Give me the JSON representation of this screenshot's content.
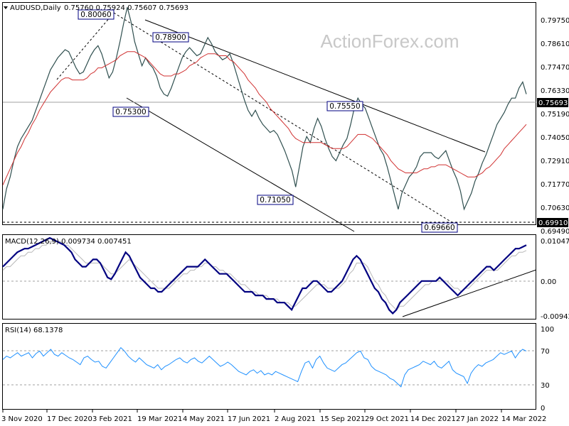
{
  "header": {
    "symbol": "AUDUSD,Daily",
    "ohlc": "0.75760 0.75924 0.75607 0.75693"
  },
  "watermark": "ActionForex.com",
  "colors": {
    "price": "#2f4f4f",
    "ma": "#d03030",
    "macd": "#000080",
    "signal": "#b8b8b8",
    "rsi": "#1e90ff",
    "label_border": "#000080"
  },
  "chart_data": [
    {
      "type": "line",
      "panel": "price",
      "ylim": [
        0.6925,
        0.8022
      ],
      "y_ticks": [
        "0.79750",
        "0.78610",
        "0.77470",
        "0.76330",
        "0.75190",
        "0.74050",
        "0.72910",
        "0.71770",
        "0.70630",
        "0.69490"
      ],
      "current_price_label": "0.75693",
      "support_label": "0.69910",
      "x_ticks": [
        "3 Nov 2020",
        "17 Dec 2020",
        "3 Feb 2021",
        "19 Mar 2021",
        "4 May 2021",
        "17 Jun 2021",
        "2 Aug 2021",
        "15 Sep 2021",
        "29 Oct 2021",
        "14 Dec 2021",
        "27 Jan 2022",
        "14 Mar 2022"
      ],
      "annotations": [
        "0.80060",
        "0.78900",
        "0.75300",
        "0.75550",
        "0.71050",
        "0.69660"
      ],
      "series": [
        {
          "values": [
            0.7,
            0.71,
            0.716,
            0.724,
            0.731,
            0.735,
            0.738,
            0.741,
            0.744,
            0.749,
            0.754,
            0.759,
            0.764,
            0.769,
            0.772,
            0.775,
            0.777,
            0.779,
            0.778,
            0.774,
            0.77,
            0.767,
            0.768,
            0.772,
            0.776,
            0.779,
            0.781,
            0.777,
            0.771,
            0.765,
            0.768,
            0.775,
            0.783,
            0.792,
            0.8,
            0.793,
            0.783,
            0.777,
            0.771,
            0.775,
            0.772,
            0.77,
            0.766,
            0.76,
            0.757,
            0.756,
            0.76,
            0.765,
            0.77,
            0.775,
            0.778,
            0.78,
            0.778,
            0.776,
            0.777,
            0.781,
            0.785,
            0.782,
            0.778,
            0.776,
            0.774,
            0.775,
            0.777,
            0.772,
            0.766,
            0.76,
            0.754,
            0.749,
            0.746,
            0.749,
            0.745,
            0.742,
            0.74,
            0.738,
            0.739,
            0.737,
            0.733,
            0.729,
            0.724,
            0.719,
            0.711,
            0.721,
            0.731,
            0.736,
            0.733,
            0.74,
            0.745,
            0.741,
            0.735,
            0.73,
            0.726,
            0.724,
            0.728,
            0.732,
            0.735,
            0.742,
            0.75,
            0.755,
            0.752,
            0.75,
            0.745,
            0.74,
            0.735,
            0.73,
            0.727,
            0.721,
            0.714,
            0.707,
            0.7,
            0.708,
            0.712,
            0.716,
            0.718,
            0.721,
            0.726,
            0.728,
            0.728,
            0.728,
            0.726,
            0.725,
            0.727,
            0.729,
            0.724,
            0.719,
            0.715,
            0.709,
            0.7,
            0.704,
            0.708,
            0.714,
            0.718,
            0.723,
            0.727,
            0.732,
            0.737,
            0.742,
            0.745,
            0.748,
            0.752,
            0.755,
            0.755,
            0.76,
            0.763,
            0.757
          ]
        },
        {
          "values": [
            0.712,
            0.716,
            0.72,
            0.724,
            0.728,
            0.731,
            0.735,
            0.738,
            0.742,
            0.745,
            0.749,
            0.752,
            0.755,
            0.758,
            0.76,
            0.762,
            0.764,
            0.765,
            0.765,
            0.764,
            0.764,
            0.764,
            0.764,
            0.765,
            0.767,
            0.768,
            0.77,
            0.77,
            0.771,
            0.772,
            0.773,
            0.774,
            0.776,
            0.777,
            0.778,
            0.778,
            0.778,
            0.777,
            0.776,
            0.775,
            0.773,
            0.771,
            0.769,
            0.767,
            0.766,
            0.766,
            0.766,
            0.767,
            0.767,
            0.768,
            0.769,
            0.771,
            0.772,
            0.773,
            0.775,
            0.776,
            0.777,
            0.777,
            0.777,
            0.776,
            0.776,
            0.776,
            0.774,
            0.773,
            0.771,
            0.769,
            0.767,
            0.764,
            0.762,
            0.76,
            0.757,
            0.755,
            0.753,
            0.75,
            0.748,
            0.746,
            0.744,
            0.742,
            0.74,
            0.737,
            0.735,
            0.734,
            0.733,
            0.733,
            0.733,
            0.733,
            0.733,
            0.733,
            0.732,
            0.731,
            0.73,
            0.73,
            0.73,
            0.73,
            0.731,
            0.733,
            0.735,
            0.737,
            0.737,
            0.737,
            0.736,
            0.735,
            0.733,
            0.731,
            0.729,
            0.727,
            0.724,
            0.722,
            0.72,
            0.719,
            0.718,
            0.718,
            0.718,
            0.718,
            0.719,
            0.72,
            0.72,
            0.721,
            0.721,
            0.722,
            0.722,
            0.722,
            0.721,
            0.72,
            0.719,
            0.718,
            0.717,
            0.716,
            0.716,
            0.716,
            0.717,
            0.718,
            0.72,
            0.721,
            0.723,
            0.725,
            0.727,
            0.73,
            0.732,
            0.734,
            0.736,
            0.738,
            0.74,
            0.742
          ]
        }
      ]
    },
    {
      "type": "line",
      "panel": "macd",
      "label": "MACD(12,26,9) 0.009734 0.007451",
      "ylim": [
        -0.0105,
        0.0128
      ],
      "y_ticks": [
        "0.010472",
        "0.00",
        "-0.009426"
      ],
      "series": [
        {
          "values": [
            0.004,
            0.005,
            0.006,
            0.007,
            0.008,
            0.0085,
            0.009,
            0.009,
            0.0095,
            0.01,
            0.0105,
            0.011,
            0.0115,
            0.012,
            0.0115,
            0.011,
            0.0105,
            0.01,
            0.009,
            0.008,
            0.006,
            0.005,
            0.004,
            0.004,
            0.005,
            0.006,
            0.006,
            0.005,
            0.003,
            0.001,
            0.0005,
            0.002,
            0.004,
            0.006,
            0.008,
            0.007,
            0.005,
            0.003,
            0.001,
            0.0,
            -0.001,
            -0.002,
            -0.002,
            -0.003,
            -0.003,
            -0.002,
            -0.001,
            0.0,
            0.001,
            0.002,
            0.003,
            0.004,
            0.004,
            0.004,
            0.004,
            0.005,
            0.006,
            0.005,
            0.004,
            0.003,
            0.002,
            0.002,
            0.002,
            0.001,
            0.0,
            -0.001,
            -0.002,
            -0.003,
            -0.003,
            -0.003,
            -0.004,
            -0.004,
            -0.004,
            -0.005,
            -0.005,
            -0.005,
            -0.006,
            -0.006,
            -0.006,
            -0.007,
            -0.008,
            -0.006,
            -0.004,
            -0.002,
            -0.002,
            -0.001,
            0.0,
            0.0,
            -0.001,
            -0.002,
            -0.003,
            -0.003,
            -0.002,
            -0.001,
            0.0,
            0.002,
            0.004,
            0.006,
            0.007,
            0.006,
            0.004,
            0.002,
            0.0,
            -0.002,
            -0.003,
            -0.005,
            -0.006,
            -0.008,
            -0.009,
            -0.008,
            -0.006,
            -0.005,
            -0.004,
            -0.003,
            -0.002,
            -0.001,
            0.0,
            0.0,
            0.0,
            0.0,
            0.0,
            0.001,
            0.0,
            -0.001,
            -0.002,
            -0.003,
            -0.004,
            -0.003,
            -0.002,
            -0.001,
            0.0,
            0.001,
            0.002,
            0.003,
            0.004,
            0.004,
            0.003,
            0.004,
            0.005,
            0.006,
            0.007,
            0.008,
            0.009,
            0.009,
            0.0095,
            0.01
          ]
        },
        {
          "values": [
            0.003,
            0.004,
            0.004,
            0.005,
            0.006,
            0.007,
            0.007,
            0.008,
            0.008,
            0.009,
            0.009,
            0.01,
            0.01,
            0.011,
            0.011,
            0.011,
            0.011,
            0.01,
            0.01,
            0.009,
            0.008,
            0.007,
            0.006,
            0.005,
            0.005,
            0.005,
            0.005,
            0.005,
            0.004,
            0.003,
            0.002,
            0.002,
            0.003,
            0.004,
            0.005,
            0.006,
            0.005,
            0.004,
            0.003,
            0.002,
            0.001,
            0.0,
            -0.001,
            -0.002,
            -0.002,
            -0.002,
            -0.002,
            -0.001,
            0.0,
            0.001,
            0.002,
            0.002,
            0.003,
            0.003,
            0.004,
            0.004,
            0.005,
            0.005,
            0.004,
            0.004,
            0.003,
            0.003,
            0.002,
            0.002,
            0.001,
            0.0,
            -0.001,
            -0.001,
            -0.002,
            -0.003,
            -0.003,
            -0.004,
            -0.004,
            -0.004,
            -0.005,
            -0.005,
            -0.005,
            -0.006,
            -0.006,
            -0.006,
            -0.007,
            -0.007,
            -0.006,
            -0.005,
            -0.004,
            -0.003,
            -0.002,
            -0.001,
            -0.001,
            -0.001,
            -0.002,
            -0.002,
            -0.002,
            -0.002,
            -0.001,
            0.0,
            0.002,
            0.003,
            0.005,
            0.005,
            0.005,
            0.004,
            0.002,
            0.0,
            -0.001,
            -0.003,
            -0.004,
            -0.006,
            -0.007,
            -0.008,
            -0.007,
            -0.007,
            -0.006,
            -0.005,
            -0.004,
            -0.003,
            -0.002,
            -0.001,
            -0.001,
            0.0,
            0.0,
            0.0,
            0.0,
            0.0,
            -0.001,
            -0.002,
            -0.002,
            -0.003,
            -0.002,
            -0.002,
            -0.001,
            0.0,
            0.001,
            0.002,
            0.003,
            0.003,
            0.003,
            0.003,
            0.004,
            0.005,
            0.006,
            0.007,
            0.007,
            0.008,
            0.008,
            0.0085
          ]
        }
      ]
    },
    {
      "type": "line",
      "panel": "rsi",
      "label": "RSI(14) 68.1378",
      "ylim": [
        0,
        100
      ],
      "y_ticks": [
        "100",
        "70",
        "30",
        "0"
      ],
      "series": [
        {
          "values": [
            58,
            62,
            60,
            63,
            66,
            62,
            64,
            66,
            60,
            65,
            68,
            62,
            66,
            70,
            64,
            62,
            66,
            63,
            60,
            58,
            55,
            52,
            60,
            62,
            58,
            55,
            56,
            50,
            48,
            54,
            60,
            66,
            72,
            68,
            62,
            58,
            55,
            60,
            56,
            52,
            50,
            48,
            52,
            46,
            50,
            52,
            55,
            58,
            60,
            56,
            54,
            58,
            60,
            56,
            54,
            58,
            62,
            58,
            54,
            50,
            52,
            55,
            52,
            48,
            44,
            42,
            40,
            44,
            46,
            42,
            45,
            40,
            42,
            40,
            44,
            42,
            40,
            38,
            36,
            34,
            32,
            44,
            54,
            56,
            48,
            58,
            62,
            54,
            48,
            46,
            44,
            48,
            52,
            54,
            58,
            62,
            66,
            68,
            60,
            58,
            50,
            46,
            44,
            42,
            40,
            36,
            34,
            30,
            26,
            40,
            46,
            48,
            50,
            52,
            56,
            54,
            52,
            56,
            50,
            48,
            52,
            56,
            46,
            42,
            40,
            38,
            30,
            42,
            48,
            52,
            50,
            54,
            56,
            58,
            62,
            66,
            64,
            66,
            68,
            60,
            66,
            70,
            68
          ]
        }
      ]
    }
  ]
}
